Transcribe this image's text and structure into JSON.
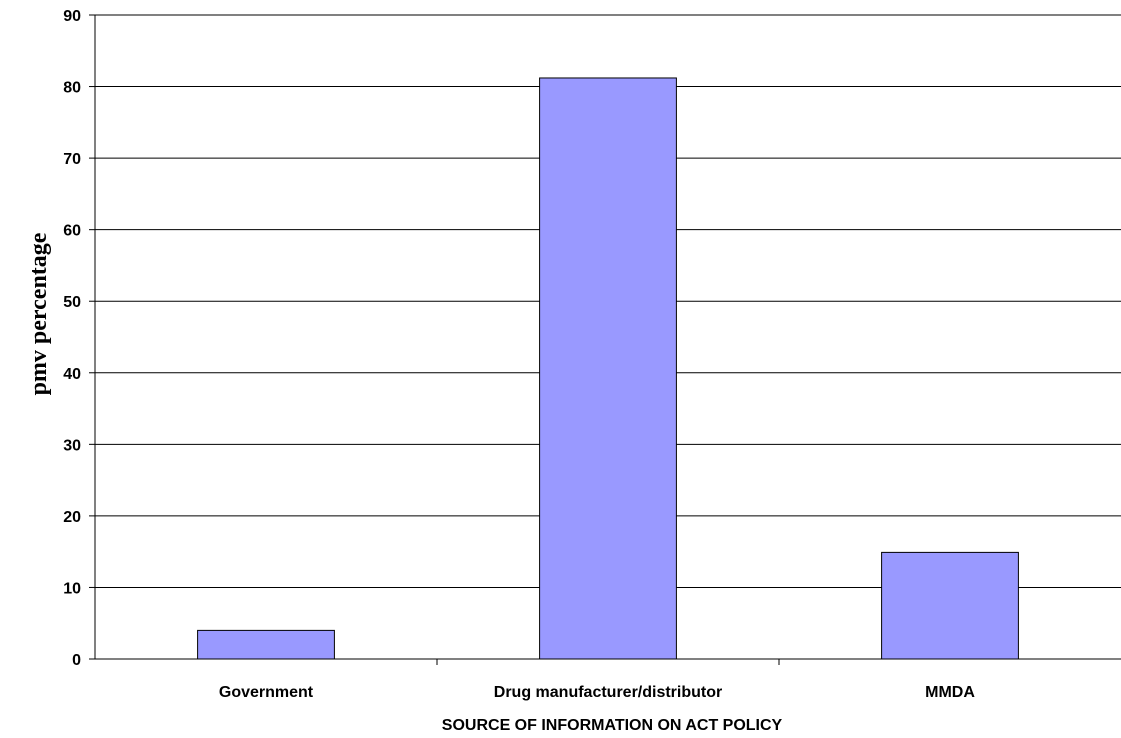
{
  "chart_data": {
    "type": "bar",
    "categories": [
      "Government",
      "Drug manufacturer/distributor",
      "MMDA"
    ],
    "values": [
      4,
      81.2,
      14.9
    ],
    "xlabel": "SOURCE OF INFORMATION ON ACT POLICY",
    "ylabel": "pmv percentage",
    "ylim": [
      0,
      90
    ],
    "yticks": [
      0,
      10,
      20,
      30,
      40,
      50,
      60,
      70,
      80,
      90
    ],
    "grid": true,
    "legend": "none",
    "bar_color": "#9999ff"
  }
}
